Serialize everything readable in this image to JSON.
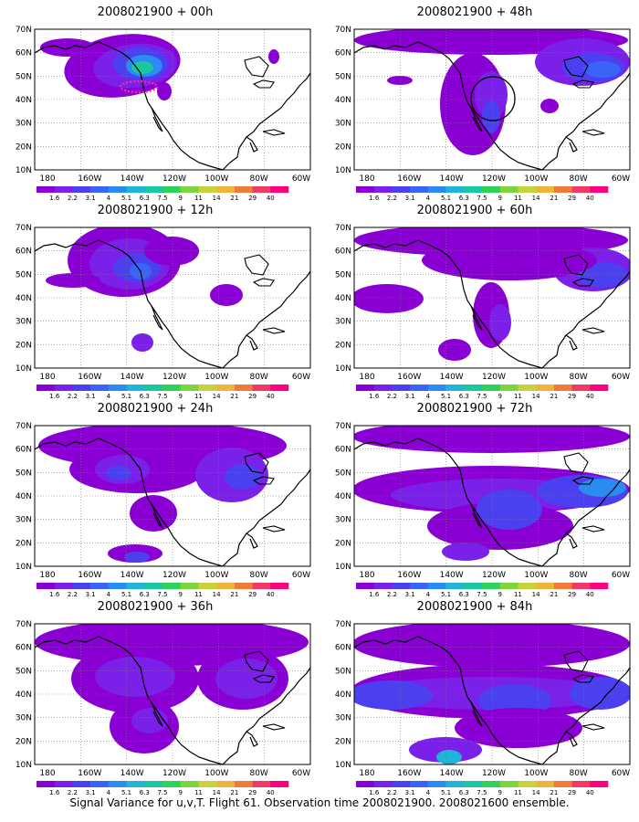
{
  "footer": "Signal Variance for u,v,T. Flight 61. Observation time 2008021900. 2008021600 ensemble.",
  "x_ticks": [
    "180",
    "160W",
    "140W",
    "120W",
    "100W",
    "80W",
    "60W"
  ],
  "y_ticks": [
    "70N",
    "60N",
    "50N",
    "40N",
    "30N",
    "20N",
    "10N"
  ],
  "colorbar": {
    "labels": [
      "1.6",
      "2.2",
      "3.1",
      "4",
      "5.1",
      "6.3",
      "7.5",
      "9",
      "11",
      "14",
      "21",
      "29",
      "40"
    ],
    "colors": [
      "#8a00d4",
      "#7a20e8",
      "#4b40f0",
      "#3a64f8",
      "#2a8cf0",
      "#20b4d8",
      "#19c8a0",
      "#2ed25a",
      "#7ad63a",
      "#c8d23a",
      "#f0b43a",
      "#f07a3a",
      "#f03a64",
      "#ff0080"
    ]
  },
  "panels": [
    {
      "title": "2008021900 + 00h"
    },
    {
      "title": "2008021900 + 48h"
    },
    {
      "title": "2008021900 + 12h"
    },
    {
      "title": "2008021900 + 60h"
    },
    {
      "title": "2008021900 + 24h"
    },
    {
      "title": "2008021900 + 72h"
    },
    {
      "title": "2008021900 + 36h"
    },
    {
      "title": "2008021900 + 84h"
    }
  ]
}
